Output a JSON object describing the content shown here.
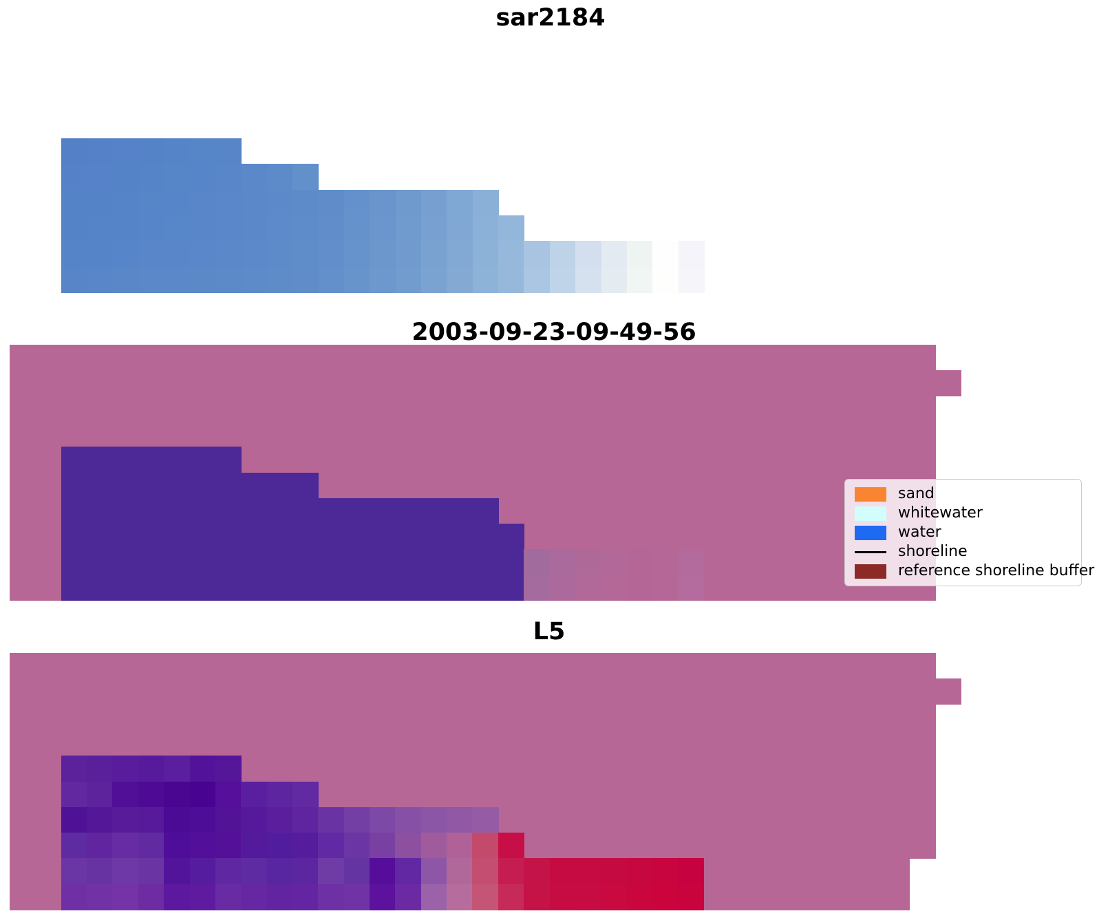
{
  "figure": {
    "background": "#ffffff"
  },
  "legend": {
    "items": [
      {
        "label": "sand",
        "kind": "patch",
        "color": "#f98532"
      },
      {
        "label": "whitewater",
        "kind": "patch",
        "color": "#d2fdff"
      },
      {
        "label": "water",
        "kind": "patch",
        "color": "#1e6af2"
      },
      {
        "label": "shoreline",
        "kind": "line",
        "color": "#000000"
      },
      {
        "label": "reference shoreline buffer",
        "kind": "patch",
        "color": "#8b2a26"
      }
    ]
  },
  "chart_data": [
    {
      "type": "heatmap",
      "title": "sar2184",
      "grid": {
        "origin": [
          89,
          201
        ],
        "cell": [
          37.36,
          37.33
        ],
        "bg_color": null,
        "bg_rects": [],
        "rows": {
          "1": {
            "start": 1,
            "colors": [
              "#5480c7",
              "#5481c7",
              "#5582c8",
              "#5583c8",
              "#5684c8",
              "#5685c8",
              "#5785c8"
            ]
          },
          "2": {
            "start": 1,
            "colors": [
              "#5481c7",
              "#5582c8",
              "#5583c8",
              "#5684c8",
              "#5685c8",
              "#5785c9",
              "#5886c9",
              "#5a88c9",
              "#5d8bc9",
              "#6290ca"
            ]
          },
          "3": {
            "start": 1,
            "colors": [
              "#5583c8",
              "#5583c8",
              "#5684c8",
              "#5685c8",
              "#5785c9",
              "#5886c9",
              "#5987c9",
              "#5a88c9",
              "#5b89c9",
              "#5d8bca",
              "#608dca",
              "#6491cb",
              "#6995cc",
              "#6f9ace",
              "#77a0d1",
              "#80a8d4",
              "#8bb0d8"
            ]
          },
          "4": {
            "start": 1,
            "colors": [
              "#5583c8",
              "#5684c8",
              "#5684c8",
              "#5785c9",
              "#5786c9",
              "#5886c9",
              "#5987c9",
              "#5a88c9",
              "#5c8aca",
              "#5e8cca",
              "#618eca",
              "#6592cb",
              "#6a96cd",
              "#709bce",
              "#78a1d1",
              "#81a8d4",
              "#8cb1d8",
              "#93b6db"
            ]
          },
          "5": {
            "start": 1,
            "colors": [
              "#5684c8",
              "#5684c8",
              "#5785c9",
              "#5886c9",
              "#5886c9",
              "#5987c9",
              "#5a88c9",
              "#5b89ca",
              "#5d8bca",
              "#5f8dca",
              "#628fcb",
              "#6693cc",
              "#6b97cd",
              "#719bcf",
              "#79a2d1",
              "#82a9d4",
              "#8db2d8",
              "#95b8db",
              "#a9c4e1",
              "#bed2e8",
              "#d3dfee",
              "#e3eaf1",
              "#eef4f2",
              "#fdfefd",
              "#f4f4fa"
            ]
          },
          "6": {
            "start": 1,
            "colors": [
              "#5885c7",
              "#5886c8",
              "#5987c8",
              "#5a88c8",
              "#5b88c8",
              "#5b89c8",
              "#5c8ac8",
              "#5d8bc9",
              "#5e8cc9",
              "#608dc9",
              "#6390ca",
              "#6794cb",
              "#6c98cd",
              "#729cce",
              "#7aa3d1",
              "#84aad4",
              "#8eb3d8",
              "#96b9db",
              "#abc6e2",
              "#c0d4e9",
              "#d5e1ee",
              "#e5ecf1",
              "#f0f6f3",
              "#fefefd",
              "#f5f5fa"
            ]
          }
        }
      }
    },
    {
      "type": "heatmap",
      "title": "2003-09-23-09-49-56",
      "grid": {
        "origin": [
          14,
          501
        ],
        "cell": [
          37.36,
          37.1
        ],
        "bg_color": "#b76796",
        "bg_rects": [
          {
            "rows": [
              1,
              10
            ],
            "cols": [
              1,
              36
            ]
          },
          {
            "rows": [
              2,
              2
            ],
            "cols": [
              37,
              37
            ]
          }
        ],
        "rows": {
          "5": {
            "start": 3,
            "colors": [
              "#4c2996",
              "#4c2996",
              "#4c2996",
              "#4c2996",
              "#4c2996",
              "#4c2996",
              "#4c2996"
            ]
          },
          "6": {
            "start": 3,
            "colors": [
              "#4c2996",
              "#4c2996",
              "#4c2996",
              "#4c2996",
              "#4c2996",
              "#4c2996",
              "#4c2996",
              "#4c2996",
              "#4c2996",
              "#4c2996"
            ]
          },
          "7": {
            "start": 3,
            "colors": [
              "#4c2996",
              "#4c2996",
              "#4c2996",
              "#4c2996",
              "#4c2996",
              "#4c2996",
              "#4c2996",
              "#4c2996",
              "#4c2996",
              "#4c2996",
              "#4c2996",
              "#4c2996",
              "#4c2996",
              "#4c2996",
              "#4c2996",
              "#4c2996",
              "#4c2996"
            ]
          },
          "8": {
            "start": 3,
            "colors": [
              "#4c2996",
              "#4c2996",
              "#4c2996",
              "#4c2996",
              "#4c2996",
              "#4c2996",
              "#4c2996",
              "#4c2996",
              "#4c2996",
              "#4c2996",
              "#4c2996",
              "#4c2996",
              "#4c2996",
              "#4c2996",
              "#4c2996",
              "#4c2996",
              "#4c2996",
              "#4c2996"
            ]
          },
          "9": {
            "start": 3,
            "colors": [
              "#4c2996",
              "#4c2996",
              "#4c2996",
              "#4c2996",
              "#4c2996",
              "#4c2996",
              "#4c2996",
              "#4c2996",
              "#4c2996",
              "#4c2996",
              "#4c2996",
              "#4c2996",
              "#4c2996",
              "#4c2996",
              "#4c2996",
              "#4c2996",
              "#4c2996",
              "#4c2996",
              "#a16b9e",
              "#aa6a9b",
              "#af6999",
              "#b26898",
              "#b46797",
              "#b56797",
              "#b36a9c"
            ]
          },
          "10": {
            "start": 3,
            "colors": [
              "#4c2996",
              "#4c2996",
              "#4c2996",
              "#4c2996",
              "#4c2996",
              "#4c2996",
              "#4c2996",
              "#4c2996",
              "#4c2996",
              "#4c2996",
              "#4c2996",
              "#4c2996",
              "#4c2996",
              "#4c2996",
              "#4c2996",
              "#4c2996",
              "#4c2996",
              "#4c2996",
              "#a46b9e",
              "#ab6a9b",
              "#b06999",
              "#b36898",
              "#b46797",
              "#b56797",
              "#b46b9d"
            ]
          }
        }
      }
    },
    {
      "type": "heatmap",
      "title": "L5",
      "grid": {
        "origin": [
          14,
          949
        ],
        "cell": [
          37.36,
          37.3
        ],
        "bg_color": "#b76796",
        "bg_rects": [
          {
            "rows": [
              1,
              8
            ],
            "cols": [
              1,
              36
            ]
          },
          {
            "rows": [
              9,
              10
            ],
            "cols": [
              1,
              35
            ]
          },
          {
            "rows": [
              2,
              2
            ],
            "cols": [
              37,
              37
            ]
          }
        ],
        "rows": {
          "5": {
            "start": 3,
            "colors": [
              "#5c229c",
              "#5a209c",
              "#581c9c",
              "#571a9d",
              "#5a1e9e",
              "#521299",
              "#551699"
            ]
          },
          "6": {
            "start": 3,
            "colors": [
              "#61289f",
              "#5d239d",
              "#510e97",
              "#4e0a94",
              "#4b0691",
              "#480390",
              "#550f9a",
              "#5a1f9e",
              "#5e25a1",
              "#6129a2"
            ]
          },
          "7": {
            "start": 3,
            "colors": [
              "#4f1296",
              "#541798",
              "#581c9b",
              "#561a9a",
              "#4c0b94",
              "#4e0d96",
              "#531397",
              "#57199b",
              "#5b1f9e",
              "#5f25a0",
              "#6933a4",
              "#743fa5",
              "#7d49a7",
              "#8550a6",
              "#8c56a6",
              "#9159a5",
              "#955ca5"
            ]
          },
          "8": {
            "start": 3,
            "colors": [
              "#5e2ba1",
              "#60259f",
              "#672ca4",
              "#622aa1",
              "#4f0e99",
              "#510f9a",
              "#541098",
              "#541a9c",
              "#511d9e",
              "#561c9e",
              "#6129a3",
              "#6c35a4",
              "#7a3fa2",
              "#8d4f9f",
              "#a05b9d",
              "#b06298",
              "#c34a6b",
              "#c80e47"
            ]
          },
          "9": {
            "start": 3,
            "colors": [
              "#6a35a5",
              "#6733a3",
              "#6e39a6",
              "#6a35a3",
              "#53149c",
              "#561c9f",
              "#5f28a2",
              "#5e2ba3",
              "#5826a1",
              "#5c26a1",
              "#6f3ca6",
              "#6434a3",
              "#560e9a",
              "#6227a2",
              "#8e56a6",
              "#b0689b",
              "#c34e71",
              "#c51d52",
              "#c41349",
              "#c60b43",
              "#c60b43",
              "#c50a42",
              "#c7073f",
              "#c90540",
              "#c60340"
            ]
          },
          "10": {
            "start": 3,
            "colors": [
              "#7030a5",
              "#7132a5",
              "#7434a7",
              "#6e2ca3",
              "#5d18a0",
              "#5f1ba0",
              "#682ba3",
              "#6527a2",
              "#6224a1",
              "#6425a2",
              "#6e30a5",
              "#7033a5",
              "#5c129d",
              "#6b2aa4",
              "#9b62a9",
              "#b66d9e",
              "#c45577",
              "#c62a58",
              "#c51247",
              "#c70c44",
              "#c70c43",
              "#c80a41",
              "#ca063f",
              "#cb043e",
              "#c8033e"
            ]
          }
        }
      }
    }
  ]
}
